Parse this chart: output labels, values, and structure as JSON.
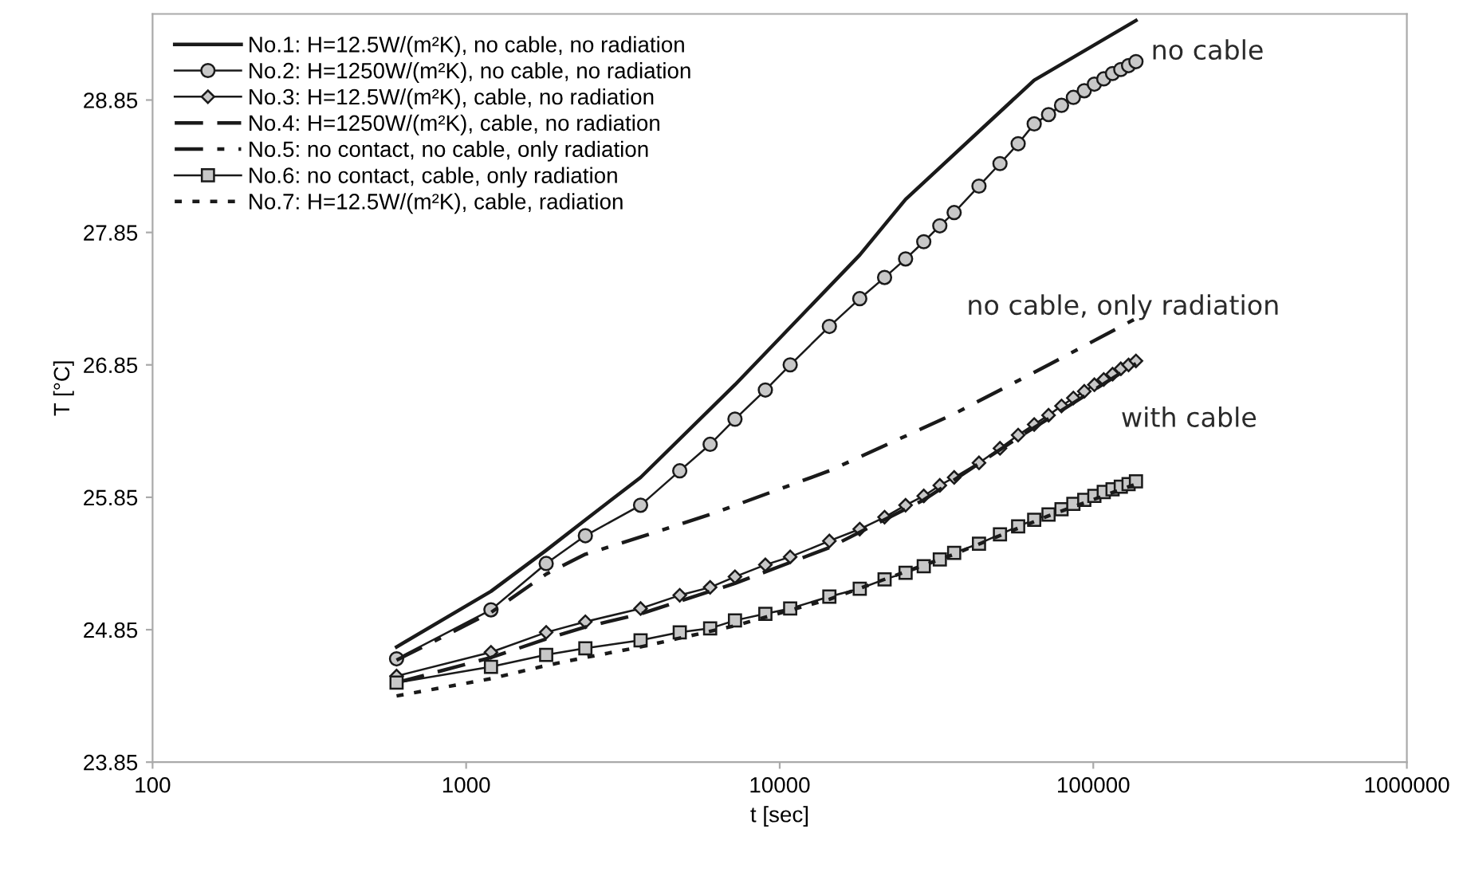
{
  "chart_data": {
    "type": "line",
    "xlabel": "t [sec]",
    "ylabel": "T [°C]",
    "log": "x",
    "xlim": [
      100,
      1000000
    ],
    "xticks": [
      100,
      1000,
      10000,
      100000,
      1000000
    ],
    "ylim": [
      23.85,
      29.5
    ],
    "yticks": [
      23.85,
      24.85,
      25.85,
      26.85,
      27.85,
      28.85
    ],
    "grid": false,
    "legend": "top left",
    "series": [
      {
        "name": "No.1: H=12.5W/(m²K), no cable, no radiation",
        "color": "#1a1a1a",
        "line_style": "solid",
        "marker": "none",
        "x": [
          600,
          1200,
          1800,
          2400,
          3600,
          7200,
          18000,
          25200,
          64800,
          136800
        ],
        "values": [
          24.72,
          25.14,
          25.45,
          25.68,
          26.0,
          26.7,
          27.68,
          28.1,
          29.0,
          29.45
        ]
      },
      {
        "name": "No.2: H=1250W/(m²K), no cable, no radiation",
        "color": "#1a1a1a",
        "line_style": "solid",
        "marker": "circle",
        "x": [
          600,
          1200,
          1800,
          2400,
          3600,
          4800,
          6000,
          7200,
          9000,
          10800,
          14400,
          18000,
          21600,
          25200,
          28800,
          32400,
          36000,
          43200,
          50400,
          57600,
          64800,
          72000,
          79200,
          86400,
          93600,
          100800,
          108000,
          115200,
          122400,
          129600,
          136800
        ],
        "values": [
          24.63,
          25.0,
          25.35,
          25.56,
          25.79,
          26.05,
          26.25,
          26.44,
          26.66,
          26.85,
          27.14,
          27.35,
          27.51,
          27.65,
          27.78,
          27.9,
          28.0,
          28.2,
          28.37,
          28.52,
          28.67,
          28.74,
          28.81,
          28.87,
          28.92,
          28.97,
          29.01,
          29.05,
          29.08,
          29.11,
          29.14
        ]
      },
      {
        "name": "No.3: H=12.5W/(m²K), cable, no radiation",
        "color": "#1a1a1a",
        "line_style": "solid",
        "marker": "diamond",
        "x": [
          600,
          1200,
          1800,
          2400,
          3600,
          4800,
          6000,
          7200,
          9000,
          10800,
          14400,
          18000,
          21600,
          25200,
          28800,
          32400,
          36000,
          43200,
          50400,
          57600,
          64800,
          72000,
          79200,
          86400,
          93600,
          100800,
          108000,
          115200,
          122400,
          129600,
          136800
        ],
        "values": [
          24.5,
          24.68,
          24.83,
          24.91,
          25.01,
          25.11,
          25.17,
          25.25,
          25.34,
          25.4,
          25.52,
          25.61,
          25.7,
          25.79,
          25.86,
          25.94,
          26.0,
          26.11,
          26.22,
          26.32,
          26.4,
          26.47,
          26.54,
          26.6,
          26.65,
          26.7,
          26.74,
          26.78,
          26.82,
          26.85,
          26.88
        ]
      },
      {
        "name": "No.4: H=1250W/(m²K), cable, no radiation",
        "color": "#1a1a1a",
        "line_style": "dashed",
        "marker": "none",
        "x": [
          600,
          1200,
          1800,
          2400,
          3600,
          7200,
          14400,
          28800,
          57600,
          136800
        ],
        "values": [
          24.45,
          24.64,
          24.78,
          24.87,
          24.97,
          25.2,
          25.47,
          25.83,
          26.3,
          26.86
        ]
      },
      {
        "name": "No.5: no contact, no cable, only radiation",
        "color": "#1a1a1a",
        "line_style": "dashdot",
        "marker": "none",
        "x": [
          600,
          1200,
          1800,
          2400,
          3600,
          6000,
          14400,
          36000,
          72000,
          136800
        ],
        "values": [
          24.62,
          24.98,
          25.27,
          25.42,
          25.55,
          25.72,
          26.05,
          26.48,
          26.85,
          27.2
        ]
      },
      {
        "name": "No.6: no contact, cable, only radiation",
        "color": "#1a1a1a",
        "line_style": "solid",
        "marker": "square",
        "x": [
          600,
          1200,
          1800,
          2400,
          3600,
          4800,
          6000,
          7200,
          9000,
          10800,
          14400,
          18000,
          21600,
          25200,
          28800,
          32400,
          36000,
          43200,
          50400,
          57600,
          64800,
          72000,
          79200,
          86400,
          93600,
          100800,
          108000,
          115200,
          122400,
          129600,
          136800
        ],
        "values": [
          24.45,
          24.57,
          24.66,
          24.71,
          24.77,
          24.83,
          24.86,
          24.92,
          24.97,
          25.01,
          25.1,
          25.16,
          25.23,
          25.28,
          25.33,
          25.38,
          25.43,
          25.5,
          25.57,
          25.63,
          25.68,
          25.72,
          25.76,
          25.8,
          25.83,
          25.86,
          25.89,
          25.91,
          25.93,
          25.95,
          25.97
        ]
      },
      {
        "name": "No.7: H=12.5W/(m²K), cable, radiation",
        "color": "#1a1a1a",
        "line_style": "dotted",
        "marker": "none",
        "x": [
          600,
          1200,
          1800,
          2400,
          3600,
          7200,
          14400,
          36000,
          72000,
          136800
        ],
        "values": [
          24.35,
          24.48,
          24.58,
          24.64,
          24.72,
          24.88,
          25.08,
          25.42,
          25.71,
          25.95
        ]
      }
    ],
    "annotations": [
      "no cable",
      "no cable, only radiation",
      "with cable"
    ]
  }
}
